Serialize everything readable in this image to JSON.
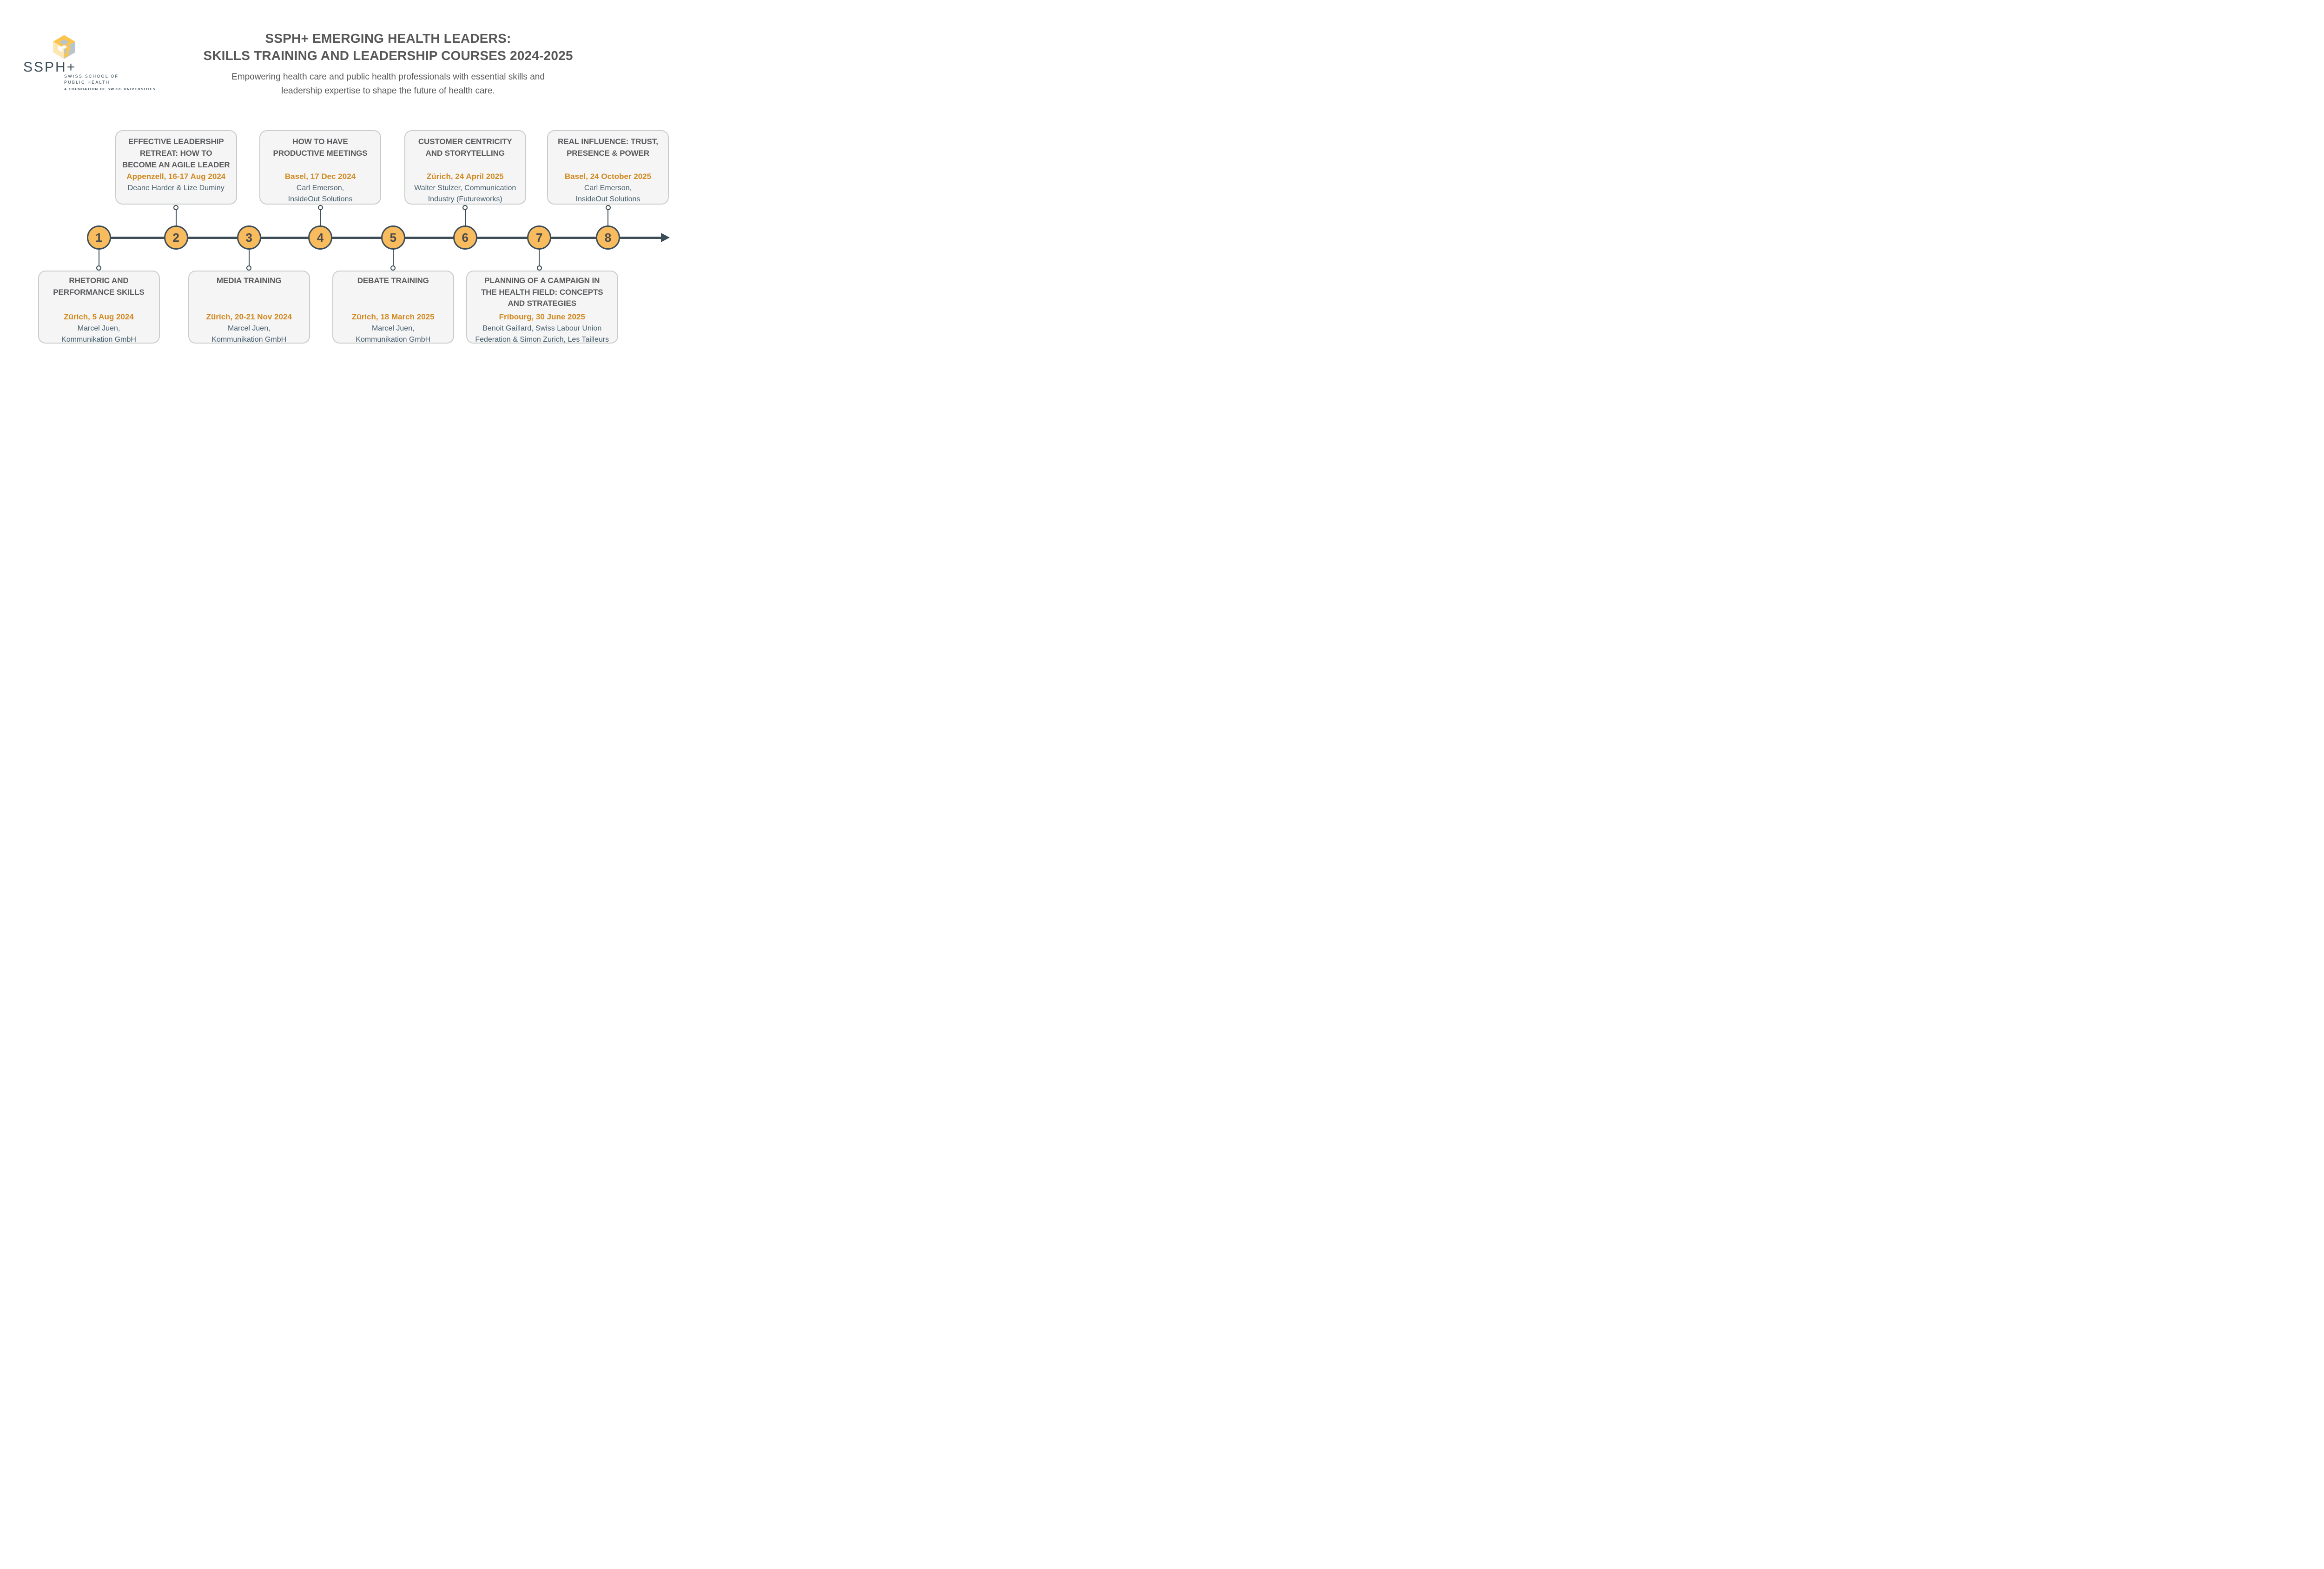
{
  "logo": {
    "brand": "SSPH+",
    "school": "SWISS SCHOOL OF\nPUBLIC HEALTH",
    "tagline": "A FOUNDATION OF SWISS UNIVERSITIES"
  },
  "header": {
    "title": "SSPH+ EMERGING HEALTH LEADERS:\nSKILLS TRAINING AND LEADERSHIP COURSES 2024-2025",
    "subtitle": "Empowering health care and public health professionals with essential skills and\nleadership expertise to shape the future of health care."
  },
  "colors": {
    "slate": "#3c4d57",
    "circle_fill": "#f8bb5e",
    "circle_number": "#4b4b4b",
    "card_title_gray": "#595a5c",
    "date_orange": "#d1891f",
    "speaker_teal": "#455e6b",
    "card_bg": "#f5f5f6",
    "card_border": "#cbcccd",
    "logo_yellow": "#fbc54d",
    "logo_pale_yellow": "#fce7b4",
    "logo_gray": "#b9c5cd",
    "logo_text": "#3d4f58"
  },
  "timeline": {
    "events": [
      {
        "num": "1",
        "side": "below",
        "title": "RHETORIC AND\nPERFORMANCE SKILLS",
        "date": "Zürich, 5 Aug 2024",
        "speaker": "Marcel Juen,\nKommunikation GmbH"
      },
      {
        "num": "2",
        "side": "above",
        "title": "EFFECTIVE LEADERSHIP\nRETREAT: HOW TO\nBECOME AN AGILE LEADER",
        "date": "Appenzell, 16-17 Aug 2024",
        "speaker": "Deane Harder & Lize Duminy"
      },
      {
        "num": "3",
        "side": "below",
        "title": "MEDIA TRAINING",
        "date": "Zürich, 20-21 Nov 2024",
        "speaker": "Marcel Juen,\nKommunikation GmbH"
      },
      {
        "num": "4",
        "side": "above",
        "title": "HOW TO HAVE\nPRODUCTIVE MEETINGS",
        "date": "Basel, 17 Dec 2024",
        "speaker": "Carl Emerson,\nInsideOut Solutions"
      },
      {
        "num": "5",
        "side": "below",
        "title": "DEBATE TRAINING",
        "date": "Zürich, 18 March 2025",
        "speaker": "Marcel Juen,\nKommunikation GmbH"
      },
      {
        "num": "6",
        "side": "above",
        "title": "CUSTOMER CENTRICITY\nAND STORYTELLING",
        "date": "Zürich, 24 April 2025",
        "speaker": "Walter Stulzer, Communication\nIndustry (Futureworks)"
      },
      {
        "num": "7",
        "side": "below",
        "title": "PLANNING OF A CAMPAIGN IN\nTHE HEALTH FIELD: CONCEPTS\nAND STRATEGIES",
        "date": "Fribourg, 30 June 2025",
        "speaker": "Benoit Gaillard, Swiss Labour Union\nFederation & Simon Zurich, Les Tailleurs"
      },
      {
        "num": "8",
        "side": "above",
        "title": "REAL INFLUENCE: TRUST,\nPRESENCE & POWER",
        "date": "Basel, 24 October 2025",
        "speaker": "Carl Emerson,\nInsideOut Solutions"
      }
    ]
  }
}
